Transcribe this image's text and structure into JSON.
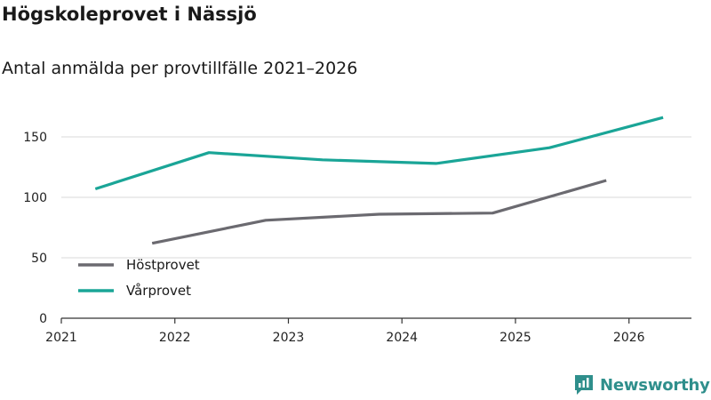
{
  "header": {
    "title": "Högskoleprovet i Nässjö",
    "subtitle": "Antal anmälda per provtillfälle 2021–2026"
  },
  "brand": {
    "name": "Newsworthy",
    "icon": "newsworthy-logo-icon"
  },
  "colors": {
    "hostprovet": "#6b6a70",
    "varprovet": "#1aa597",
    "grid": "#d9d9d9",
    "axis": "#333333",
    "brand": "#2f8f8c"
  },
  "chart_data": {
    "type": "line",
    "title": "Högskoleprovet i Nässjö",
    "subtitle": "Antal anmälda per provtillfälle 2021–2026",
    "xlabel": "",
    "ylabel": "",
    "xlim": [
      2021,
      2026.55
    ],
    "ylim": [
      0,
      175
    ],
    "x_ticks": [
      "2021",
      "2022",
      "2023",
      "2024",
      "2025",
      "2026"
    ],
    "y_ticks": [
      0,
      50,
      100,
      150
    ],
    "grid": true,
    "legend": "bottom-left",
    "series": [
      {
        "name": "Höstprovet",
        "color": "#6b6a70",
        "points": [
          {
            "x": 2021.8,
            "y": 62
          },
          {
            "x": 2022.8,
            "y": 81
          },
          {
            "x": 2023.8,
            "y": 86
          },
          {
            "x": 2024.8,
            "y": 87
          },
          {
            "x": 2025.8,
            "y": 114
          }
        ]
      },
      {
        "name": "Vårprovet",
        "color": "#1aa597",
        "points": [
          {
            "x": 2021.3,
            "y": 107
          },
          {
            "x": 2022.3,
            "y": 137
          },
          {
            "x": 2023.3,
            "y": 131
          },
          {
            "x": 2024.3,
            "y": 128
          },
          {
            "x": 2025.3,
            "y": 141
          },
          {
            "x": 2026.3,
            "y": 166
          }
        ]
      }
    ]
  }
}
